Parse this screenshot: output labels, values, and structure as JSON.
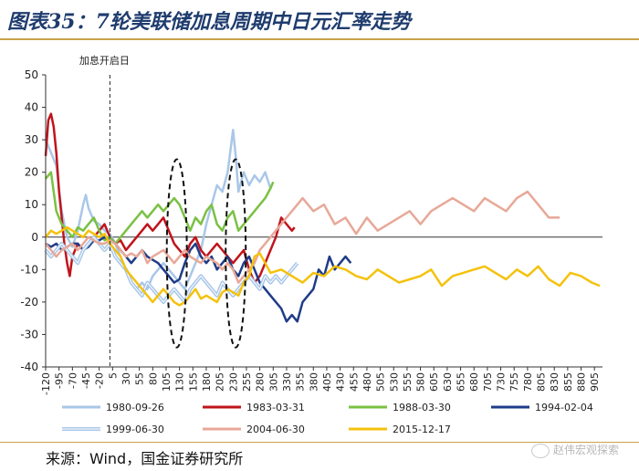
{
  "title": "图表35：7轮美联储加息周期中日元汇率走势",
  "source": "来源：Wind，国金证券研究所",
  "watermark": "赵伟宏观探索",
  "chart_data": {
    "type": "line",
    "annotation": "加息开启日",
    "annotation_x": 0,
    "xlim": [
      -120,
      920
    ],
    "ylim": [
      -40,
      50
    ],
    "y_ticks": [
      -40,
      -30,
      -20,
      -10,
      0,
      10,
      20,
      30,
      40,
      50
    ],
    "x_ticks": [
      -120,
      -95,
      -70,
      -45,
      -20,
      5,
      30,
      55,
      80,
      105,
      130,
      155,
      180,
      205,
      230,
      255,
      280,
      305,
      330,
      355,
      380,
      405,
      430,
      455,
      480,
      505,
      530,
      555,
      580,
      605,
      630,
      655,
      680,
      705,
      730,
      755,
      780,
      805,
      830,
      855,
      880,
      905
    ],
    "highlight_ellipses": [
      {
        "x_center": 125,
        "y_min": -34,
        "y_max": 24
      },
      {
        "x_center": 235,
        "y_min": -34,
        "y_max": 24
      }
    ],
    "series": [
      {
        "name": "1980-09-26",
        "color": "#a9c7e8",
        "width": 2.5,
        "double": false,
        "x": [
          -120,
          -110,
          -100,
          -90,
          -80,
          -70,
          -60,
          -50,
          -45,
          -40,
          -30,
          -20,
          -10,
          0,
          10,
          20,
          30,
          40,
          50,
          60,
          70,
          80,
          90,
          100,
          110,
          120,
          130,
          140,
          150,
          160,
          170,
          180,
          190,
          200,
          210,
          220,
          230,
          235,
          240,
          250,
          260,
          270,
          280,
          290,
          300
        ],
        "y": [
          30,
          26,
          22,
          8,
          0,
          -3,
          2,
          10,
          13,
          9,
          5,
          4,
          2,
          1,
          -2,
          -6,
          -10,
          -14,
          -16,
          -14,
          -16,
          -12,
          -10,
          -8,
          -10,
          -12,
          -14,
          -16,
          -12,
          -8,
          -4,
          4,
          10,
          16,
          14,
          20,
          33,
          25,
          14,
          20,
          16,
          19,
          17,
          20,
          15
        ]
      },
      {
        "name": "1983-03-31",
        "color": "#c0141c",
        "width": 2.5,
        "double": false,
        "x": [
          -120,
          -115,
          -110,
          -105,
          -100,
          -95,
          -90,
          -85,
          -80,
          -75,
          -70,
          -60,
          -50,
          -40,
          -30,
          -20,
          -10,
          0,
          10,
          20,
          30,
          40,
          50,
          60,
          70,
          80,
          90,
          100,
          110,
          120,
          130,
          140,
          150,
          160,
          170,
          180,
          190,
          200,
          210,
          220,
          230,
          240,
          250,
          260,
          270,
          280,
          290,
          300,
          310,
          320,
          330,
          340,
          345
        ],
        "y": [
          25,
          36,
          38,
          34,
          26,
          14,
          6,
          -2,
          -8,
          -12,
          -6,
          -2,
          -4,
          -2,
          0,
          2,
          4,
          0,
          -2,
          -1,
          -4,
          -2,
          0,
          2,
          4,
          2,
          4,
          6,
          2,
          -2,
          -4,
          -6,
          -2,
          0,
          -4,
          -6,
          -4,
          -2,
          -4,
          -6,
          -8,
          -6,
          -4,
          -10,
          -14,
          -12,
          -8,
          -4,
          0,
          6,
          4,
          2,
          3
        ]
      },
      {
        "name": "1988-03-30",
        "color": "#7ac143",
        "width": 2.5,
        "double": false,
        "x": [
          -120,
          -110,
          -100,
          -90,
          -80,
          -70,
          -60,
          -50,
          -40,
          -30,
          -20,
          -10,
          0,
          10,
          20,
          30,
          40,
          50,
          60,
          70,
          80,
          90,
          100,
          110,
          120,
          130,
          140,
          150,
          160,
          170,
          180,
          190,
          200,
          210,
          220,
          230,
          240,
          250,
          260,
          270,
          280,
          290,
          300,
          305
        ],
        "y": [
          18,
          20,
          8,
          4,
          2,
          0,
          3,
          2,
          4,
          6,
          2,
          -1,
          0,
          -2,
          0,
          2,
          4,
          6,
          8,
          6,
          8,
          10,
          8,
          10,
          12,
          10,
          6,
          2,
          6,
          4,
          8,
          10,
          4,
          2,
          6,
          8,
          2,
          4,
          6,
          8,
          10,
          12,
          15,
          17
        ]
      },
      {
        "name": "1994-02-04",
        "color": "#1f3c88",
        "width": 2.5,
        "double": false,
        "x": [
          -120,
          -110,
          -100,
          -90,
          -80,
          -70,
          -60,
          -50,
          -40,
          -30,
          -20,
          -10,
          0,
          10,
          20,
          30,
          40,
          50,
          60,
          70,
          80,
          90,
          100,
          110,
          120,
          130,
          140,
          150,
          160,
          170,
          180,
          190,
          200,
          210,
          220,
          230,
          240,
          250,
          260,
          270,
          280,
          290,
          300,
          310,
          320,
          330,
          340,
          350,
          360,
          370,
          380,
          390,
          400,
          410,
          420,
          430,
          440,
          450
        ],
        "y": [
          -2,
          -3,
          -2,
          -4,
          -3,
          -2,
          -2,
          -4,
          -3,
          -1,
          -1,
          0,
          -1,
          -2,
          -4,
          -6,
          -8,
          -6,
          -4,
          -6,
          -7,
          -8,
          -10,
          -12,
          -14,
          -13,
          -8,
          -4,
          -2,
          -6,
          -8,
          -6,
          -10,
          -8,
          -6,
          -10,
          -12,
          -8,
          -6,
          -10,
          -14,
          -16,
          -18,
          -20,
          -22,
          -26,
          -24,
          -26,
          -20,
          -18,
          -16,
          -10,
          -12,
          -6,
          -10,
          -8,
          -6,
          -8
        ]
      },
      {
        "name": "1999-06-30",
        "color": "#a9c7e8",
        "width": 2,
        "double": true,
        "x": [
          -120,
          -110,
          -100,
          -90,
          -80,
          -70,
          -60,
          -50,
          -40,
          -30,
          -20,
          -10,
          0,
          10,
          20,
          30,
          40,
          50,
          60,
          70,
          80,
          90,
          100,
          110,
          120,
          130,
          140,
          150,
          160,
          170,
          180,
          190,
          200,
          210,
          220,
          230,
          240,
          250,
          260,
          270,
          280,
          290,
          300,
          310,
          320,
          330,
          340,
          350
        ],
        "y": [
          -4,
          -6,
          -4,
          -2,
          -4,
          -6,
          -8,
          -4,
          -2,
          0,
          -2,
          -4,
          -2,
          -6,
          -8,
          -10,
          -14,
          -16,
          -18,
          -14,
          -16,
          -18,
          -20,
          -18,
          -16,
          -18,
          -20,
          -16,
          -14,
          -12,
          -14,
          -16,
          -18,
          -14,
          -16,
          -18,
          -16,
          -14,
          -12,
          -14,
          -16,
          -12,
          -14,
          -12,
          -14,
          -12,
          -10,
          -8
        ]
      },
      {
        "name": "2004-06-30",
        "color": "#e8a898",
        "width": 2.5,
        "double": false,
        "x": [
          -120,
          -110,
          -100,
          -90,
          -80,
          -70,
          -60,
          -50,
          -40,
          -30,
          -20,
          -10,
          0,
          10,
          20,
          30,
          40,
          50,
          60,
          70,
          80,
          90,
          100,
          110,
          120,
          130,
          140,
          150,
          160,
          170,
          180,
          190,
          200,
          210,
          220,
          230,
          240,
          250,
          260,
          270,
          280,
          290,
          300,
          310,
          320,
          330,
          340,
          350,
          360,
          380,
          400,
          420,
          440,
          460,
          480,
          500,
          520,
          540,
          560,
          580,
          600,
          620,
          640,
          660,
          680,
          700,
          720,
          740,
          760,
          780,
          800,
          820,
          840
        ],
        "y": [
          -2,
          -4,
          -6,
          -4,
          -3,
          -2,
          -4,
          -2,
          0,
          -1,
          -2,
          -2,
          -1,
          -2,
          -4,
          -6,
          -5,
          -6,
          -4,
          -8,
          -6,
          -5,
          -4,
          -6,
          -8,
          -6,
          -4,
          -6,
          -7,
          -8,
          -6,
          -7,
          -8,
          -10,
          -8,
          -10,
          -14,
          -12,
          -10,
          -8,
          -4,
          -2,
          0,
          2,
          4,
          6,
          8,
          10,
          12,
          8,
          10,
          4,
          6,
          1,
          6,
          2,
          4,
          6,
          8,
          4,
          8,
          10,
          12,
          10,
          8,
          12,
          10,
          8,
          12,
          14,
          10,
          6,
          6
        ]
      },
      {
        "name": "2015-12-17",
        "color": "#f4c20d",
        "width": 2.5,
        "double": false,
        "x": [
          -120,
          -110,
          -100,
          -90,
          -80,
          -70,
          -60,
          -50,
          -40,
          -30,
          -20,
          -10,
          0,
          10,
          20,
          30,
          40,
          50,
          60,
          70,
          80,
          90,
          100,
          110,
          120,
          130,
          140,
          150,
          160,
          170,
          180,
          190,
          200,
          210,
          220,
          230,
          240,
          250,
          260,
          270,
          280,
          290,
          300,
          320,
          340,
          360,
          380,
          400,
          420,
          440,
          460,
          480,
          500,
          520,
          540,
          560,
          580,
          600,
          620,
          640,
          660,
          680,
          700,
          720,
          740,
          760,
          780,
          800,
          820,
          840,
          860,
          880,
          900,
          915
        ],
        "y": [
          0,
          2,
          1,
          2,
          3,
          2,
          1,
          0,
          2,
          1,
          0,
          1,
          -2,
          -4,
          -6,
          -10,
          -12,
          -14,
          -16,
          -18,
          -20,
          -18,
          -16,
          -18,
          -20,
          -21,
          -20,
          -18,
          -16,
          -19,
          -18,
          -19,
          -20,
          -17,
          -16,
          -17,
          -18,
          -14,
          -12,
          -6,
          -5,
          -8,
          -11,
          -10,
          -12,
          -14,
          -11,
          -12,
          -9,
          -10,
          -12,
          -13,
          -10,
          -12,
          -14,
          -13,
          -12,
          -10,
          -15,
          -12,
          -11,
          -10,
          -9,
          -11,
          -13,
          -10,
          -12,
          -9,
          -13,
          -15,
          -11,
          -12,
          -14,
          -15
        ]
      }
    ]
  }
}
